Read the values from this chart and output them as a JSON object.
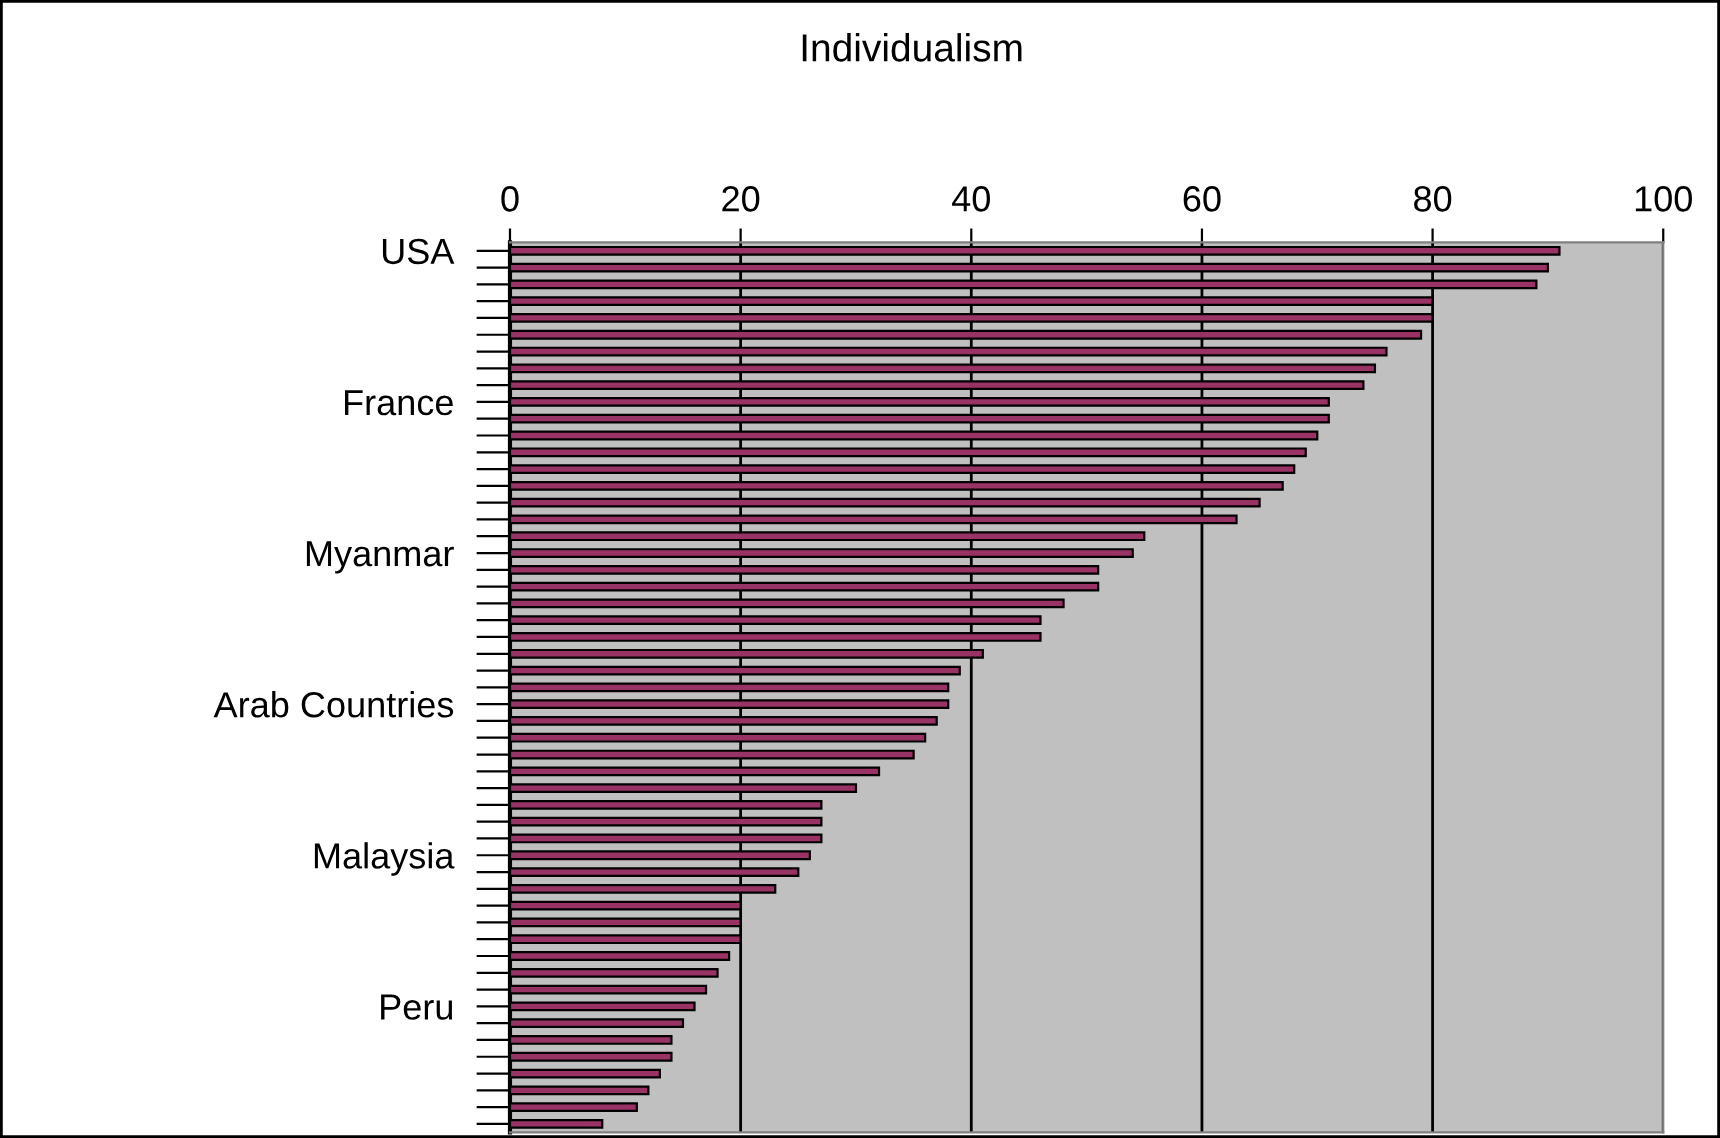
{
  "chart_data": {
    "type": "bar",
    "orientation": "horizontal",
    "title": "Individualism",
    "categories": [
      "USA",
      null,
      null,
      null,
      null,
      null,
      null,
      null,
      null,
      "France",
      null,
      null,
      null,
      null,
      null,
      null,
      null,
      null,
      "Myanmar",
      null,
      null,
      null,
      null,
      null,
      null,
      null,
      null,
      "Arab Countries",
      null,
      null,
      null,
      null,
      null,
      null,
      null,
      null,
      "Malaysia",
      null,
      null,
      null,
      null,
      null,
      null,
      null,
      null,
      "Peru",
      null,
      null,
      null,
      null,
      null,
      null,
      null
    ],
    "values": [
      91,
      90,
      89,
      80,
      80,
      79,
      76,
      75,
      74,
      71,
      71,
      70,
      69,
      68,
      67,
      65,
      63,
      55,
      54,
      51,
      51,
      48,
      46,
      46,
      41,
      39,
      38,
      38,
      37,
      36,
      35,
      32,
      30,
      27,
      27,
      27,
      26,
      25,
      23,
      20,
      20,
      20,
      19,
      18,
      17,
      16,
      15,
      14,
      14,
      13,
      12,
      11,
      8
    ],
    "color": "#993366",
    "xlim": [
      0,
      100
    ],
    "xticks": [
      0,
      20,
      40,
      60,
      80,
      100
    ],
    "grid": "x"
  }
}
